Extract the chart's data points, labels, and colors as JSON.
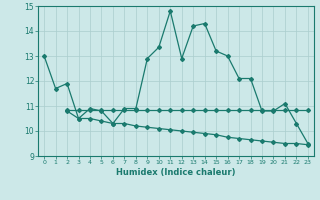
{
  "line1_x": [
    0,
    1,
    2,
    3,
    4,
    5,
    6,
    7,
    8,
    9,
    10,
    11,
    12,
    13,
    14,
    15,
    16,
    17,
    18,
    19,
    20,
    21,
    22,
    23
  ],
  "line1_y": [
    13.0,
    11.7,
    11.9,
    10.5,
    10.9,
    10.8,
    10.3,
    10.9,
    10.9,
    12.9,
    13.35,
    14.8,
    12.9,
    14.2,
    14.3,
    13.2,
    13.0,
    12.1,
    12.1,
    10.8,
    10.8,
    11.1,
    10.3,
    9.5
  ],
  "line2_x": [
    2,
    3,
    4,
    5,
    6,
    7,
    8,
    9,
    10,
    11,
    12,
    13,
    14,
    15,
    16,
    17,
    18,
    19,
    20,
    21,
    22,
    23
  ],
  "line2_y": [
    10.85,
    10.85,
    10.85,
    10.85,
    10.85,
    10.85,
    10.85,
    10.85,
    10.85,
    10.85,
    10.85,
    10.85,
    10.85,
    10.85,
    10.85,
    10.85,
    10.85,
    10.85,
    10.85,
    10.85,
    10.85,
    10.85
  ],
  "line3_x": [
    2,
    3,
    4,
    5,
    6,
    7,
    8,
    9,
    10,
    11,
    12,
    13,
    14,
    15,
    16,
    17,
    18,
    19,
    20,
    21,
    22,
    23
  ],
  "line3_y": [
    10.8,
    10.5,
    10.5,
    10.4,
    10.3,
    10.3,
    10.2,
    10.15,
    10.1,
    10.05,
    10.0,
    9.95,
    9.9,
    9.85,
    9.75,
    9.7,
    9.65,
    9.6,
    9.55,
    9.5,
    9.5,
    9.45
  ],
  "color": "#1a7a6e",
  "bg_color": "#cce8e8",
  "grid_color": "#aacece",
  "xlabel": "Humidex (Indice chaleur)",
  "ylim": [
    9,
    15
  ],
  "xlim": [
    -0.5,
    23.5
  ],
  "yticks": [
    9,
    10,
    11,
    12,
    13,
    14,
    15
  ],
  "xticks": [
    0,
    1,
    2,
    3,
    4,
    5,
    6,
    7,
    8,
    9,
    10,
    11,
    12,
    13,
    14,
    15,
    16,
    17,
    18,
    19,
    20,
    21,
    22,
    23
  ],
  "marker": "D",
  "markersize": 2.0,
  "linewidth": 0.9
}
